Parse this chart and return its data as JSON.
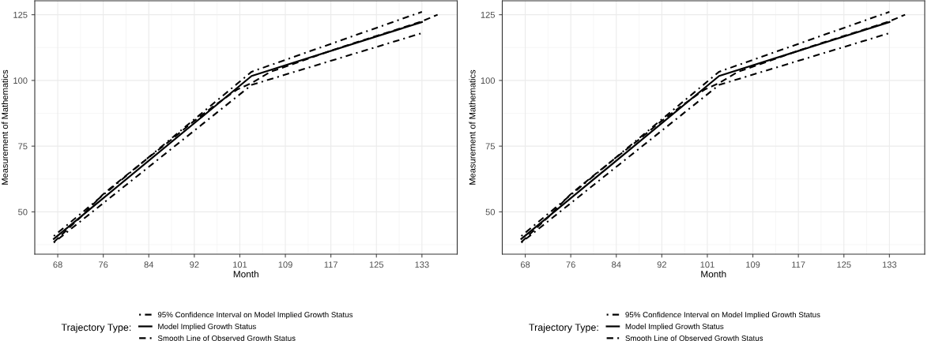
{
  "chart_data": [
    {
      "type": "line",
      "xlabel": "Month",
      "ylabel": "Measurement of Mathematics",
      "legend_title": "Trajectory Type:",
      "legend": "bottom",
      "grid": true,
      "xlim": [
        63.9,
        139.3
      ],
      "ylim": [
        33.9,
        130.3
      ],
      "xticks": [
        {
          "value": 68,
          "label": "68"
        },
        {
          "value": 76.125,
          "label": "76"
        },
        {
          "value": 84.25,
          "label": "84"
        },
        {
          "value": 92.375,
          "label": "92"
        },
        {
          "value": 100.5,
          "label": "101"
        },
        {
          "value": 108.625,
          "label": "109"
        },
        {
          "value": 116.75,
          "label": "117"
        },
        {
          "value": 124.875,
          "label": "125"
        },
        {
          "value": 133,
          "label": "133"
        }
      ],
      "yticks": [
        50,
        75,
        100,
        125
      ],
      "series": [
        {
          "name": "95% Confidence Interval on Model Implied Growth Status",
          "color": "#000000",
          "line_style": "dashdot",
          "x": [
            67.3,
            102.6,
            133
          ],
          "values": [
            40.8,
            103.3,
            126.1
          ]
        },
        {
          "color": "#000000",
          "line_style": "dashdot",
          "x": [
            67.3,
            102.6,
            133
          ],
          "values": [
            38.3,
            98.3,
            118
          ]
        },
        {
          "name": "Model Implied Growth Status",
          "color": "#000000",
          "line_style": "solid",
          "x": [
            67.3,
            102.6,
            133
          ],
          "values": [
            39.7,
            101.7,
            122.2
          ]
        },
        {
          "name": "Smooth Line of Observed Growth Status",
          "color": "#000000",
          "line_style": "dashed",
          "x": [
            67.3,
            72,
            76,
            80,
            84,
            88,
            92,
            96,
            100,
            102.6,
            106,
            109,
            113,
            117,
            121,
            125,
            129,
            133,
            135.8
          ],
          "values": [
            38.5,
            47.8,
            56.5,
            63.5,
            70.3,
            77,
            84,
            90.5,
            96.5,
            99,
            103.3,
            105.5,
            108.5,
            111.5,
            114.3,
            117,
            119.7,
            122.5,
            125
          ]
        }
      ]
    },
    {
      "type": "line",
      "xlabel": "Month",
      "ylabel": "Measurement of Mathematics",
      "legend_title": "Trajectory Type:",
      "legend": "bottom",
      "grid": true,
      "xlim": [
        63.9,
        139.3
      ],
      "ylim": [
        33.9,
        130.3
      ],
      "xticks": [
        {
          "value": 68,
          "label": "68"
        },
        {
          "value": 76.125,
          "label": "76"
        },
        {
          "value": 84.25,
          "label": "84"
        },
        {
          "value": 92.375,
          "label": "92"
        },
        {
          "value": 100.5,
          "label": "101"
        },
        {
          "value": 108.625,
          "label": "109"
        },
        {
          "value": 116.75,
          "label": "117"
        },
        {
          "value": 124.875,
          "label": "125"
        },
        {
          "value": 133,
          "label": "133"
        }
      ],
      "yticks": [
        50,
        75,
        100,
        125
      ],
      "series": [
        {
          "name": "95% Confidence Interval on Model Implied Growth Status",
          "color": "#000000",
          "line_style": "dashdot",
          "x": [
            67.3,
            102.6,
            133
          ],
          "values": [
            40.8,
            103.3,
            126.1
          ]
        },
        {
          "color": "#000000",
          "line_style": "dashdot",
          "x": [
            67.3,
            102.6,
            133
          ],
          "values": [
            38.3,
            98.3,
            118
          ]
        },
        {
          "name": "Model Implied Growth Status",
          "color": "#000000",
          "line_style": "solid",
          "x": [
            67.3,
            102.6,
            133
          ],
          "values": [
            39.7,
            101.7,
            122.2
          ]
        },
        {
          "name": "Smooth Line of Observed Growth Status",
          "color": "#000000",
          "line_style": "dashed",
          "x": [
            67.3,
            72,
            76,
            80,
            84,
            88,
            92,
            96,
            100,
            102.6,
            106,
            109,
            113,
            117,
            121,
            125,
            129,
            133,
            135.8
          ],
          "values": [
            38.5,
            47.8,
            56.5,
            63.5,
            70.3,
            77,
            84,
            90.5,
            96.5,
            99,
            103.3,
            105.5,
            108.5,
            111.5,
            114.3,
            117,
            119.7,
            122.5,
            125
          ]
        }
      ]
    }
  ]
}
